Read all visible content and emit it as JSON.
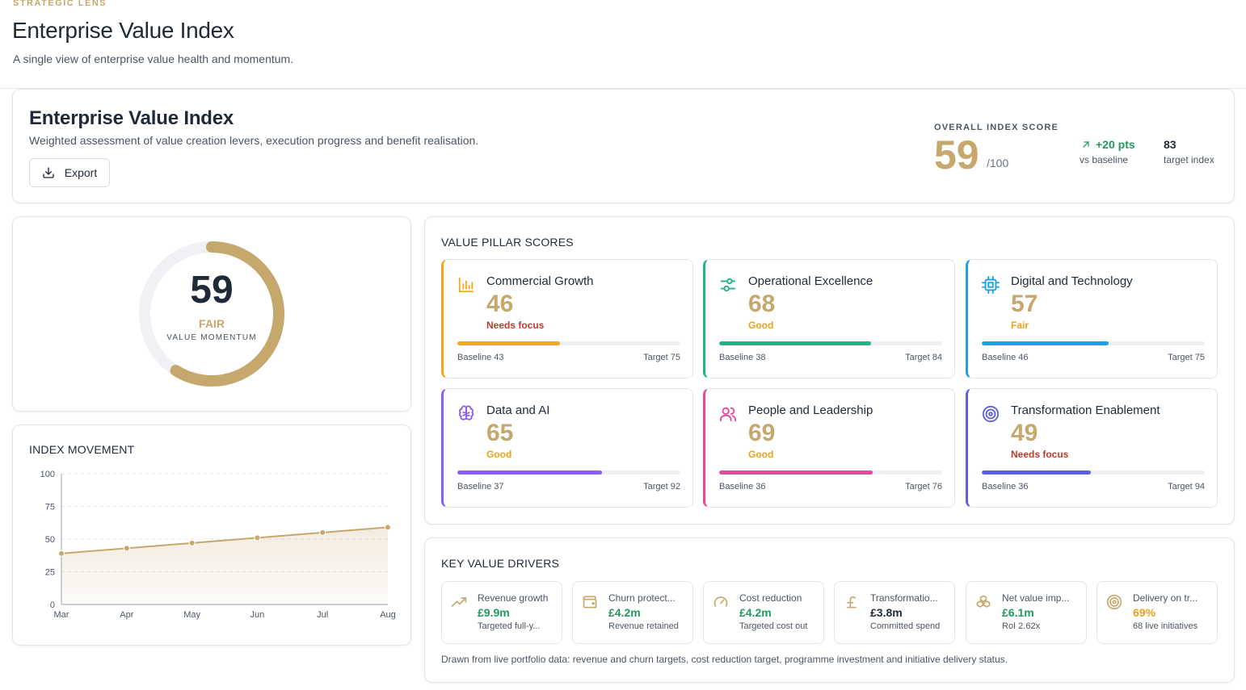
{
  "header": {
    "eyebrow": "STRATEGIC LENS",
    "title": "Enterprise Value Index",
    "subtitle": "A single view of enterprise value health and momentum."
  },
  "hero": {
    "title": "Enterprise Value Index",
    "subtitle": "Weighted assessment of value creation levers, execution progress and benefit realisation.",
    "export_label": "Export",
    "overall_label": "OVERALL INDEX SCORE",
    "overall_score": "59",
    "overall_denominator": "/100",
    "delta_value": "+20 pts",
    "delta_caption": "vs baseline",
    "target_value": "83",
    "target_caption": "target index"
  },
  "gauge": {
    "value": "59",
    "fraction": 0.59,
    "status": "FAIR",
    "caption": "VALUE MOMENTUM"
  },
  "index_movement": {
    "title": "INDEX MOVEMENT"
  },
  "chart_data": {
    "type": "area",
    "title": "INDEX MOVEMENT",
    "x": [
      "Mar",
      "Apr",
      "May",
      "Jun",
      "Jul",
      "Aug"
    ],
    "series": [
      {
        "values": [
          39,
          43,
          47,
          51,
          55,
          59
        ]
      }
    ],
    "ylim": [
      0,
      100
    ],
    "yticks": [
      0,
      25,
      50,
      75,
      100
    ],
    "grid": true,
    "color": "#c6a76c"
  },
  "pillars": {
    "title": "VALUE PILLAR SCORES",
    "items": [
      {
        "name": "Commercial Growth",
        "score": "46",
        "value": 46,
        "status": "Needs focus",
        "status_color": "#c0392b",
        "color": "#f0a81c",
        "icon": "bar-chart-icon",
        "baseline": "Baseline 43",
        "target": "Target 75"
      },
      {
        "name": "Operational Excellence",
        "score": "68",
        "value": 68,
        "status": "Good",
        "status_color": "#e8a317",
        "color": "#1db584",
        "icon": "sliders-icon",
        "baseline": "Baseline 38",
        "target": "Target 84"
      },
      {
        "name": "Digital and Technology",
        "score": "57",
        "value": 57,
        "status": "Fair",
        "status_color": "#e8a317",
        "color": "#1aa1e6",
        "icon": "cpu-icon",
        "baseline": "Baseline 46",
        "target": "Target 75"
      },
      {
        "name": "Data and AI",
        "score": "65",
        "value": 65,
        "status": "Good",
        "status_color": "#e8a317",
        "color": "#8b5cf6",
        "icon": "brain-icon",
        "baseline": "Baseline 37",
        "target": "Target 92"
      },
      {
        "name": "People and Leadership",
        "score": "69",
        "value": 69,
        "status": "Good",
        "status_color": "#e8a317",
        "color": "#e5479a",
        "icon": "users-icon",
        "baseline": "Baseline 36",
        "target": "Target 76"
      },
      {
        "name": "Transformation Enablement",
        "score": "49",
        "value": 49,
        "status": "Needs focus",
        "status_color": "#c0392b",
        "color": "#5b5fe0",
        "icon": "target-icon",
        "baseline": "Baseline 36",
        "target": "Target 94"
      }
    ]
  },
  "drivers": {
    "title": "KEY VALUE DRIVERS",
    "items": [
      {
        "label": "Revenue growth",
        "value": "£9.9m",
        "caption": "Targeted full-y...",
        "icon": "trending-up-icon",
        "value_color": "#1f9a5c"
      },
      {
        "label": "Churn protect...",
        "value": "£4.2m",
        "caption": "Revenue retained",
        "icon": "wallet-icon",
        "value_color": "#1f9a5c"
      },
      {
        "label": "Cost reduction",
        "value": "£4.2m",
        "caption": "Targeted cost out",
        "icon": "gauge-icon",
        "value_color": "#1f9a5c"
      },
      {
        "label": "Transformatio...",
        "value": "£3.8m",
        "caption": "Committed spend",
        "icon": "pound-icon",
        "value_color": "#1f2937"
      },
      {
        "label": "Net value imp...",
        "value": "£6.1m",
        "caption": "RoI 2.62x",
        "icon": "boxes-icon",
        "value_color": "#1f9a5c"
      },
      {
        "label": "Delivery on tr...",
        "value": "69%",
        "caption": "68 live initiatives",
        "icon": "target-icon",
        "value_color": "#e8a317"
      }
    ],
    "note": "Drawn from live portfolio data: revenue and churn targets, cost reduction target, programme investment and initiative delivery status."
  }
}
